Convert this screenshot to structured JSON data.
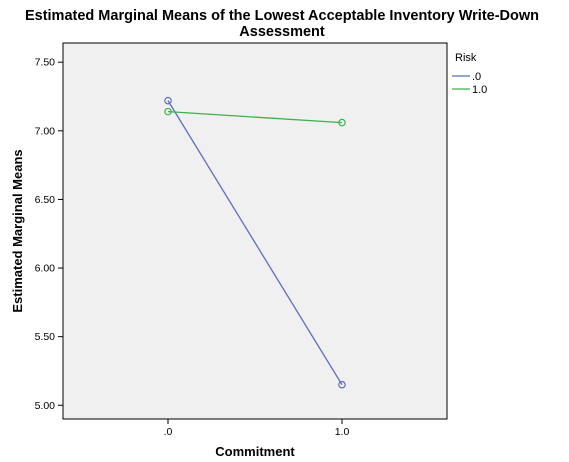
{
  "chart_data": {
    "type": "line",
    "title_line1": "Estimated Marginal Means of the Lowest Acceptable Inventory Write-Down",
    "title_line2": "Assessment",
    "xlabel": "Commitment",
    "ylabel": "Estimated Marginal Means",
    "categories": [
      ".0",
      "1.0"
    ],
    "ylim": [
      4.9,
      7.64
    ],
    "yticks": [
      5.0,
      5.5,
      6.0,
      6.5,
      7.0,
      7.5
    ],
    "ytick_labels": [
      "5.00",
      "5.50",
      "6.00",
      "6.50",
      "7.00",
      "7.50"
    ],
    "legend_title": "Risk",
    "legend_position": "top-right",
    "grid": false,
    "plot_background": "#f0f0f0",
    "series": [
      {
        "name": ".0",
        "values": [
          7.22,
          5.15
        ],
        "color": "#5b6fbe"
      },
      {
        "name": "1.0",
        "values": [
          7.14,
          7.06
        ],
        "color": "#3cb34a"
      }
    ]
  }
}
